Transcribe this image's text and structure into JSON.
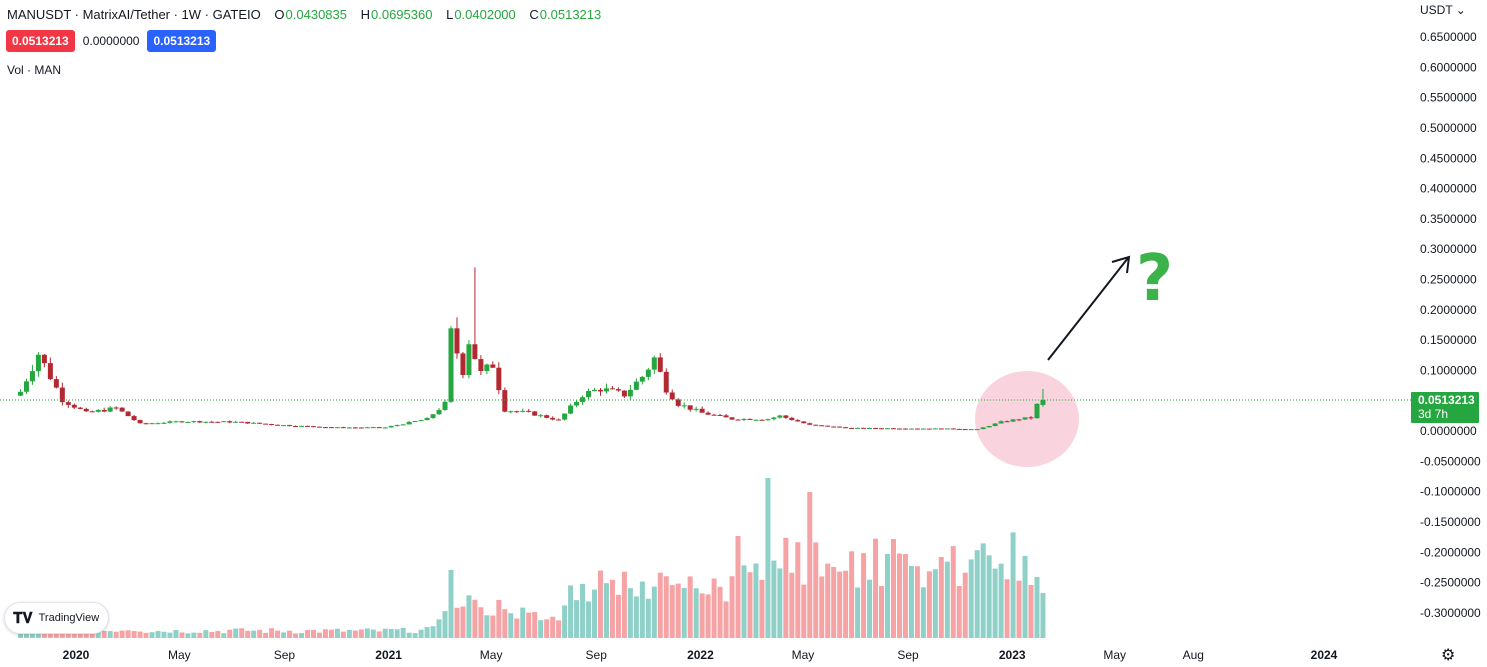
{
  "header": {
    "symbol": "MANUSDT · MatrixAI/Tether · 1W · GATEIO",
    "open_label": "O",
    "open": "0.0430835",
    "high_label": "H",
    "high": "0.0695360",
    "low_label": "L",
    "low": "0.0402000",
    "close_label": "C",
    "close": "0.0513213",
    "bid": "0.0513213",
    "spread": "0.0000000",
    "ask": "0.0513213",
    "volume_label": "Vol · MAN"
  },
  "axis": {
    "currency": "USDT",
    "last_price": "0.0513213",
    "countdown": "3d 7h"
  },
  "logo": {
    "text": "TradingView"
  },
  "colors": {
    "up": "#26a640",
    "down": "#b22833",
    "vol_up": "#8fd1c8",
    "vol_down": "#f6a3a6",
    "price_line": "#26a640",
    "highlight": "#f8c9d7",
    "question": "#3cb34a"
  },
  "chart_data": {
    "type": "candlestick",
    "y_ticks": [
      "0.6500000",
      "0.6000000",
      "0.5500000",
      "0.5000000",
      "0.4500000",
      "0.4000000",
      "0.3500000",
      "0.3000000",
      "0.2500000",
      "0.2000000",
      "0.1500000",
      "0.1000000",
      "0.0500000",
      "0.0000000",
      "-0.0500000",
      "-0.1000000",
      "-0.1500000",
      "-0.2000000",
      "-0.2500000",
      "-0.3000000"
    ],
    "ylim": [
      -0.32,
      0.67
    ],
    "x_ticks": [
      {
        "label": "2020",
        "date": "2020-01-01"
      },
      {
        "label": "May",
        "date": "2020-05-01"
      },
      {
        "label": "Sep",
        "date": "2020-09-01"
      },
      {
        "label": "2021",
        "date": "2021-01-01"
      },
      {
        "label": "May",
        "date": "2021-05-01"
      },
      {
        "label": "Sep",
        "date": "2021-09-01"
      },
      {
        "label": "2022",
        "date": "2022-01-01"
      },
      {
        "label": "May",
        "date": "2022-05-01"
      },
      {
        "label": "Sep",
        "date": "2022-09-01"
      },
      {
        "label": "2023",
        "date": "2023-01-01"
      },
      {
        "label": "May",
        "date": "2023-05-01"
      },
      {
        "label": "Aug",
        "date": "2023-08-01"
      },
      {
        "label": "2024",
        "date": "2024-01-01"
      }
    ],
    "anchors": [
      {
        "date": "2019-10-28",
        "c": 0.065
      },
      {
        "date": "2019-11-18",
        "c": 0.128
      },
      {
        "date": "2019-12-16",
        "c": 0.052
      },
      {
        "date": "2020-01-13",
        "c": 0.03
      },
      {
        "date": "2020-02-17",
        "c": 0.038
      },
      {
        "date": "2020-03-16",
        "c": 0.012
      },
      {
        "date": "2020-05-04",
        "c": 0.016
      },
      {
        "date": "2020-07-06",
        "c": 0.015
      },
      {
        "date": "2020-09-07",
        "c": 0.009
      },
      {
        "date": "2020-11-02",
        "c": 0.006
      },
      {
        "date": "2020-12-28",
        "c": 0.006
      },
      {
        "date": "2021-02-15",
        "c": 0.02
      },
      {
        "date": "2021-03-08",
        "c": 0.045
      },
      {
        "date": "2021-03-15",
        "c": 0.16
      },
      {
        "date": "2021-03-29",
        "c": 0.1
      },
      {
        "date": "2021-04-05",
        "c": 0.15
      },
      {
        "date": "2021-04-19",
        "c": 0.095
      },
      {
        "date": "2021-05-03",
        "c": 0.11
      },
      {
        "date": "2021-05-17",
        "c": 0.035
      },
      {
        "date": "2021-06-14",
        "c": 0.03
      },
      {
        "date": "2021-07-19",
        "c": 0.018
      },
      {
        "date": "2021-08-16",
        "c": 0.06
      },
      {
        "date": "2021-09-06",
        "c": 0.07
      },
      {
        "date": "2021-10-04",
        "c": 0.06
      },
      {
        "date": "2021-10-25",
        "c": 0.09
      },
      {
        "date": "2021-11-08",
        "c": 0.12
      },
      {
        "date": "2021-11-22",
        "c": 0.07
      },
      {
        "date": "2021-12-06",
        "c": 0.045
      },
      {
        "date": "2022-01-03",
        "c": 0.03
      },
      {
        "date": "2022-02-07",
        "c": 0.02
      },
      {
        "date": "2022-03-21",
        "c": 0.02
      },
      {
        "date": "2022-04-04",
        "c": 0.025
      },
      {
        "date": "2022-05-09",
        "c": 0.01
      },
      {
        "date": "2022-06-27",
        "c": 0.005
      },
      {
        "date": "2022-10-17",
        "c": 0.004
      },
      {
        "date": "2022-11-21",
        "c": 0.003
      },
      {
        "date": "2022-12-19",
        "c": 0.015
      },
      {
        "date": "2023-01-09",
        "c": 0.02
      },
      {
        "date": "2023-01-23",
        "c": 0.022
      },
      {
        "date": "2023-01-30",
        "c": 0.043
      },
      {
        "date": "2023-02-06",
        "c": 0.0513213
      }
    ],
    "last_candle": {
      "date": "2023-02-06",
      "o": 0.0430835,
      "h": 0.069536,
      "l": 0.0402,
      "c": 0.0513213
    },
    "big_wick": {
      "date": "2021-04-12",
      "h": 0.27
    }
  }
}
